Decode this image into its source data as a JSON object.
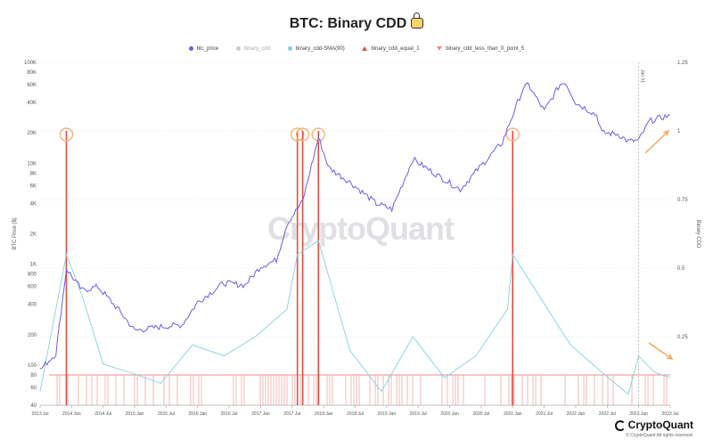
{
  "chart_data": {
    "type": "line",
    "title": "BTC: Binary CDD",
    "left_axis": {
      "label": "BTC Price ($)",
      "scale": "log",
      "range": [
        40,
        100000
      ],
      "ticks": [
        "40",
        "60",
        "80",
        "100",
        "200",
        "400",
        "600",
        "800",
        "1K",
        "2K",
        "4K",
        "6K",
        "8K",
        "10K",
        "20K",
        "40K",
        "60K",
        "80K",
        "100K"
      ]
    },
    "right_axis": {
      "label": "Binary CDD",
      "range": [
        0,
        1.25
      ],
      "ticks": [
        "0.25",
        "0.5",
        "0.75",
        "1",
        "1.25"
      ]
    },
    "x_axis": {
      "range": [
        "2013-07",
        "2023-07"
      ],
      "ticks": [
        "2013 Jul",
        "2014 Jan",
        "2014 Jul",
        "2015 Jan",
        "2015 Jul",
        "2016 Jan",
        "2016 Jul",
        "2017 Jan",
        "2017 Jul",
        "2018 Jan",
        "2018 Jul",
        "2019 Jan",
        "2019 Jul",
        "2020 Jan",
        "2020 Jul",
        "2021 Jan",
        "2021 Jul",
        "2022 Jan",
        "2022 Jul",
        "2023 Jan",
        "2023 Jul"
      ]
    },
    "legend": [
      {
        "name": "btc_price",
        "color": "#6c5ce7",
        "enabled": true
      },
      {
        "name": "binary_cdd",
        "color": "#bbbbbb",
        "enabled": false
      },
      {
        "name": "binary_cdd-SMA(90)",
        "color": "#7fd3e0",
        "enabled": true
      },
      {
        "name": "binary_cdd_equal_1",
        "color": "#e74c3c",
        "enabled": true
      },
      {
        "name": "binary_cdd_less_than_0_point_5",
        "color": "#f08a8a",
        "enabled": true
      }
    ],
    "annotation": "Jan 01",
    "series": [
      {
        "name": "btc_price",
        "color": "#6c5ce7",
        "x": [
          "2013-07",
          "2013-10",
          "2013-12",
          "2014-03",
          "2014-06",
          "2014-10",
          "2015-01",
          "2015-06",
          "2015-10",
          "2016-01",
          "2016-06",
          "2016-10",
          "2017-01",
          "2017-04",
          "2017-06",
          "2017-09",
          "2017-12",
          "2018-02",
          "2018-06",
          "2018-11",
          "2019-02",
          "2019-06",
          "2019-10",
          "2020-03",
          "2020-07",
          "2020-11",
          "2020-12",
          "2021-03",
          "2021-04",
          "2021-07",
          "2021-10",
          "2021-11",
          "2022-01",
          "2022-05",
          "2022-06",
          "2022-09",
          "2022-11",
          "2023-01",
          "2023-03",
          "2023-05",
          "2023-07"
        ],
        "y": [
          90,
          130,
          900,
          550,
          600,
          350,
          220,
          240,
          250,
          420,
          650,
          620,
          950,
          1100,
          2500,
          4200,
          18000,
          9000,
          6500,
          4000,
          3500,
          11000,
          8000,
          5500,
          9500,
          16000,
          22000,
          55000,
          60000,
          33000,
          60000,
          64000,
          40000,
          30000,
          20000,
          19500,
          16500,
          16800,
          26000,
          28000,
          30000
        ]
      },
      {
        "name": "binary_cdd-SMA(90)",
        "color": "#7fd3e0",
        "x": [
          "2013-07",
          "2013-12",
          "2014-03",
          "2014-07",
          "2014-12",
          "2015-06",
          "2015-12",
          "2016-06",
          "2016-12",
          "2017-06",
          "2017-08",
          "2017-12",
          "2018-06",
          "2018-12",
          "2019-06",
          "2019-12",
          "2020-06",
          "2020-12",
          "2021-01",
          "2021-06",
          "2021-12",
          "2022-06",
          "2022-11",
          "2023-01",
          "2023-04",
          "2023-07"
        ],
        "y": [
          0.05,
          0.55,
          0.4,
          0.15,
          0.12,
          0.08,
          0.22,
          0.18,
          0.25,
          0.35,
          0.55,
          0.6,
          0.2,
          0.05,
          0.25,
          0.1,
          0.18,
          0.35,
          0.55,
          0.4,
          0.22,
          0.12,
          0.04,
          0.18,
          0.12,
          0.1
        ]
      },
      {
        "name": "binary_cdd_equal_1",
        "color": "#e74c3c",
        "x": [
          "2013-12",
          "2017-08",
          "2017-09",
          "2017-12",
          "2021-01"
        ],
        "y": [
          1,
          1,
          1,
          1,
          1
        ]
      }
    ]
  },
  "watermark": "CryptoQuant",
  "brand": "CryptoQuant",
  "copyright": "© CryptoQuant All rights reserved."
}
